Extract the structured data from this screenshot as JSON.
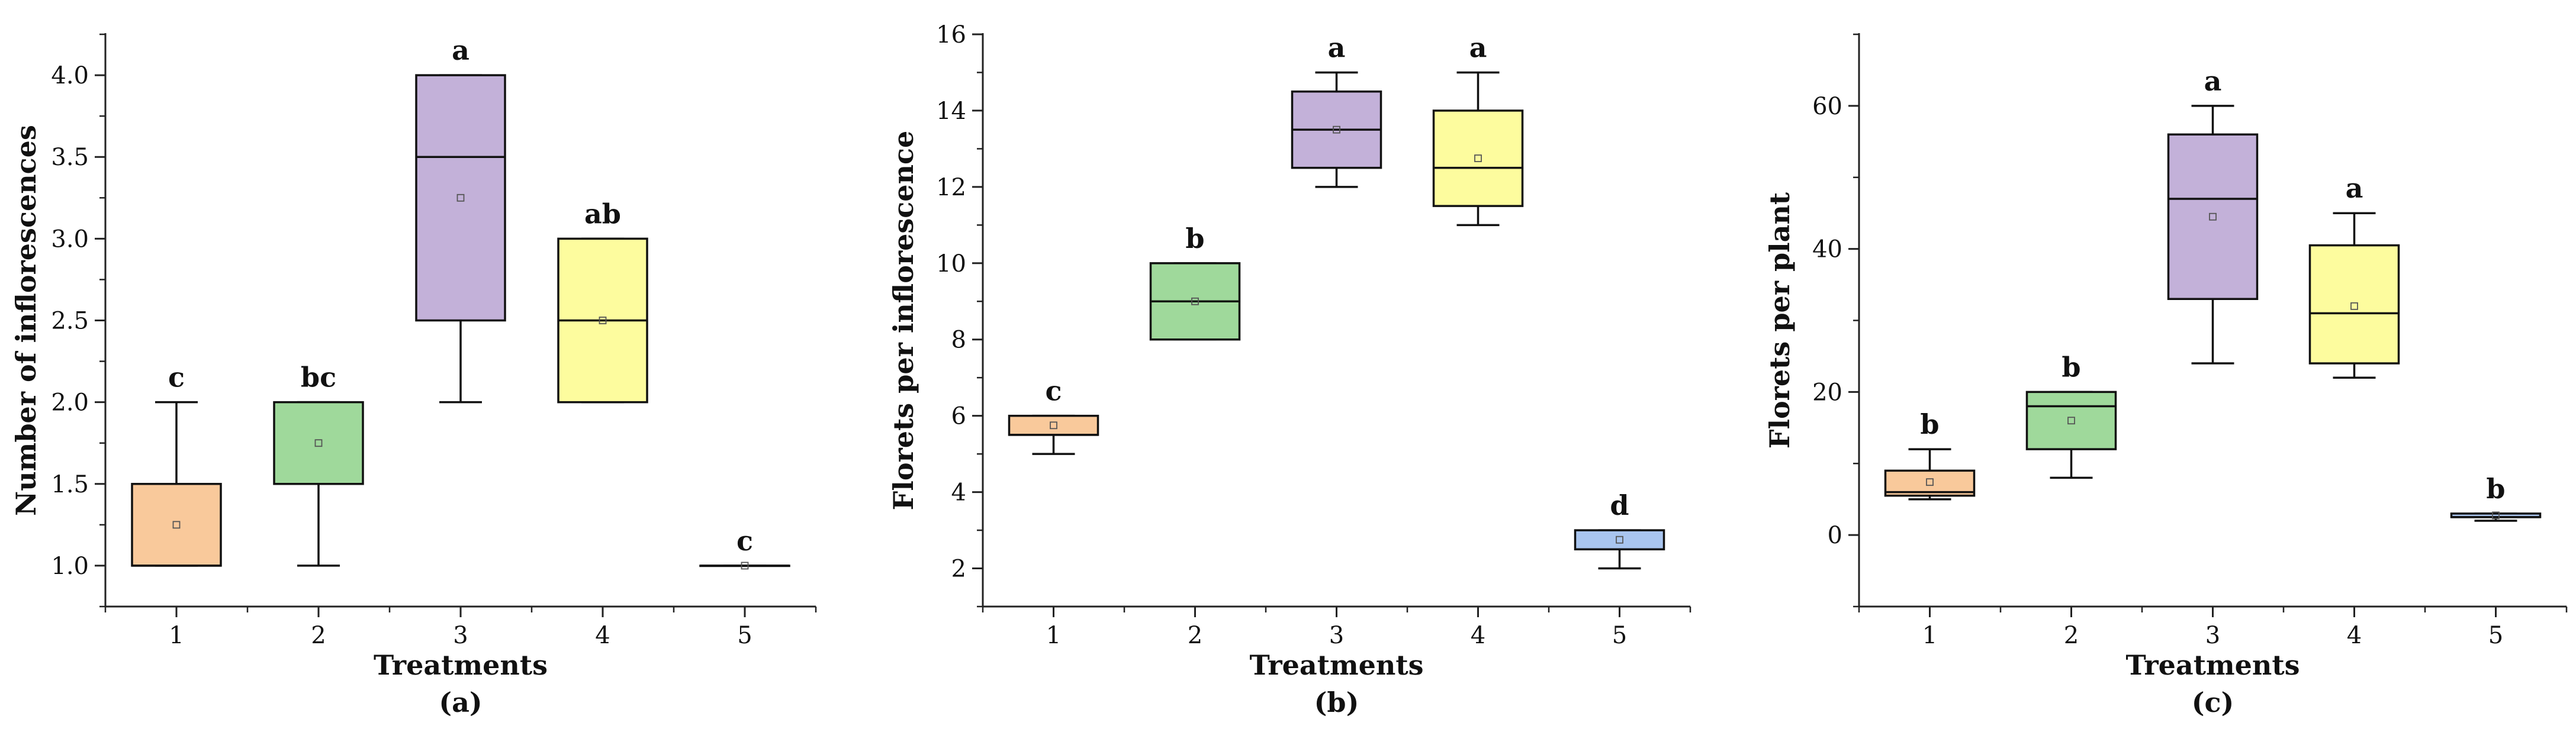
{
  "chart_data": [
    {
      "type": "box",
      "panel_caption": "(a)",
      "xlabel": "Treatments",
      "ylabel": "Number of inflorescences",
      "ylim": [
        0.75,
        4.25
      ],
      "yticks": [
        1.0,
        1.5,
        2.0,
        2.5,
        3.0,
        3.5,
        4.0
      ],
      "ytick_labels": [
        "1.0",
        "1.5",
        "2.0",
        "2.5",
        "3.0",
        "3.5",
        "4.0"
      ],
      "categories": [
        "1",
        "2",
        "3",
        "4",
        "5"
      ],
      "boxes": [
        {
          "category": "1",
          "whisker_low": 1.0,
          "q1": 1.0,
          "median": 1.0,
          "q3": 1.5,
          "whisker_high": 2.0,
          "mean": 1.25,
          "letter": "c",
          "color": "#f9c99b"
        },
        {
          "category": "2",
          "whisker_low": 1.0,
          "q1": 1.5,
          "median": 1.5,
          "q3": 2.0,
          "whisker_high": 2.0,
          "mean": 1.75,
          "letter": "bc",
          "color": "#9fd99b"
        },
        {
          "category": "3",
          "whisker_low": 2.0,
          "q1": 2.5,
          "median": 3.5,
          "q3": 4.0,
          "whisker_high": 4.0,
          "mean": 3.25,
          "letter": "a",
          "color": "#c3b1d9"
        },
        {
          "category": "4",
          "whisker_low": 2.0,
          "q1": 2.0,
          "median": 2.5,
          "q3": 3.0,
          "whisker_high": 3.0,
          "mean": 2.5,
          "letter": "ab",
          "color": "#fdfc9e"
        },
        {
          "category": "5",
          "whisker_low": 1.0,
          "q1": 1.0,
          "median": 1.0,
          "q3": 1.0,
          "whisker_high": 1.0,
          "mean": 1.0,
          "letter": "c",
          "color": "#a9c5ef"
        }
      ]
    },
    {
      "type": "box",
      "panel_caption": "(b)",
      "xlabel": "Treatments",
      "ylabel": "Florets per inflorescence",
      "ylim": [
        1,
        16
      ],
      "yticks": [
        2,
        4,
        6,
        8,
        10,
        12,
        14,
        16
      ],
      "ytick_labels": [
        "2",
        "4",
        "6",
        "8",
        "10",
        "12",
        "14",
        "16"
      ],
      "categories": [
        "1",
        "2",
        "3",
        "4",
        "5"
      ],
      "boxes": [
        {
          "category": "1",
          "whisker_low": 5.0,
          "q1": 5.5,
          "median": 5.5,
          "q3": 6.0,
          "whisker_high": 6.0,
          "mean": 5.75,
          "letter": "c",
          "color": "#f9c99b"
        },
        {
          "category": "2",
          "whisker_low": 8.0,
          "q1": 8.0,
          "median": 9.0,
          "q3": 10.0,
          "whisker_high": 10.0,
          "mean": 9.0,
          "letter": "b",
          "color": "#9fd99b"
        },
        {
          "category": "3",
          "whisker_low": 12.0,
          "q1": 12.5,
          "median": 13.5,
          "q3": 14.5,
          "whisker_high": 15.0,
          "mean": 13.5,
          "letter": "a",
          "color": "#c3b1d9"
        },
        {
          "category": "4",
          "whisker_low": 11.0,
          "q1": 11.5,
          "median": 12.5,
          "q3": 14.0,
          "whisker_high": 15.0,
          "mean": 12.75,
          "letter": "a",
          "color": "#fdfc9e"
        },
        {
          "category": "5",
          "whisker_low": 2.0,
          "q1": 2.5,
          "median": 2.5,
          "q3": 3.0,
          "whisker_high": 3.0,
          "mean": 2.75,
          "letter": "d",
          "color": "#a9c5ef"
        }
      ]
    },
    {
      "type": "box",
      "panel_caption": "(c)",
      "xlabel": "Treatments",
      "ylabel": "Florets per plant",
      "ylim": [
        -10,
        70
      ],
      "yticks": [
        0,
        20,
        40,
        60
      ],
      "ytick_labels": [
        "0",
        "20",
        "40",
        "60"
      ],
      "categories": [
        "1",
        "2",
        "3",
        "4",
        "5"
      ],
      "boxes": [
        {
          "category": "1",
          "whisker_low": 5.0,
          "q1": 5.5,
          "median": 6.0,
          "q3": 9.0,
          "whisker_high": 12.0,
          "mean": 7.4,
          "letter": "b",
          "color": "#f9c99b"
        },
        {
          "category": "2",
          "whisker_low": 8.0,
          "q1": 12.0,
          "median": 18.0,
          "q3": 20.0,
          "whisker_high": 20.0,
          "mean": 16.0,
          "letter": "b",
          "color": "#9fd99b"
        },
        {
          "category": "3",
          "whisker_low": 24.0,
          "q1": 33.0,
          "median": 47.0,
          "q3": 56.0,
          "whisker_high": 60.0,
          "mean": 44.5,
          "letter": "a",
          "color": "#c3b1d9"
        },
        {
          "category": "4",
          "whisker_low": 22.0,
          "q1": 24.0,
          "median": 31.0,
          "q3": 40.5,
          "whisker_high": 45.0,
          "mean": 32.0,
          "letter": "a",
          "color": "#fdfc9e"
        },
        {
          "category": "5",
          "whisker_low": 2.0,
          "q1": 2.5,
          "median": 2.5,
          "q3": 3.0,
          "whisker_high": 3.0,
          "mean": 2.75,
          "letter": "b",
          "color": "#a9c5ef"
        }
      ]
    }
  ]
}
